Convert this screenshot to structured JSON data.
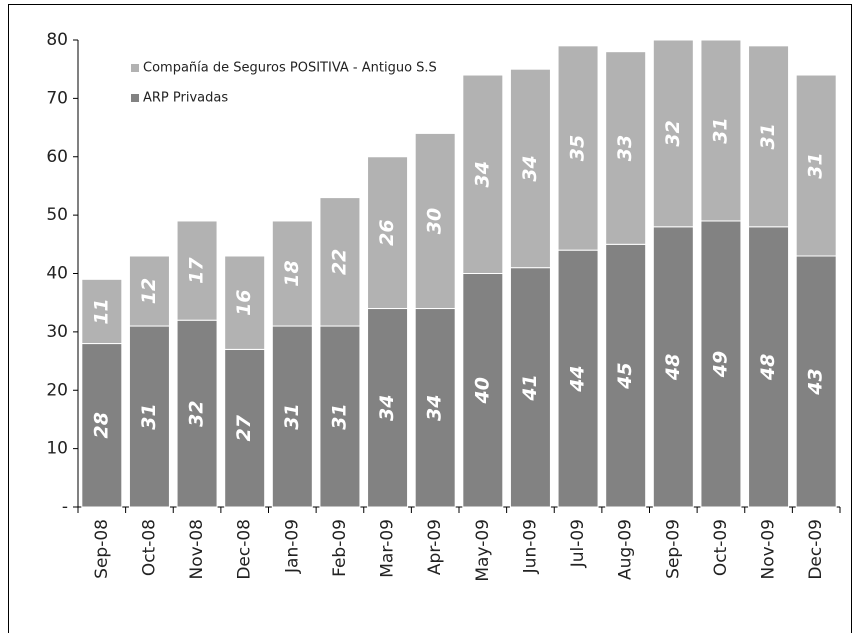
{
  "chart_data": {
    "type": "bar",
    "stacked": true,
    "categories": [
      "Sep-08",
      "Oct-08",
      "Nov-08",
      "Dec-08",
      "Jan-09",
      "Feb-09",
      "Mar-09",
      "Apr-09",
      "May-09",
      "Jun-09",
      "Jul-09",
      "Aug-09",
      "Sep-09",
      "Oct-09",
      "Nov-09",
      "Dec-09"
    ],
    "series": [
      {
        "name": "ARP Privadas",
        "color": "#828282",
        "values": [
          28,
          31,
          32,
          27,
          31,
          31,
          34,
          34,
          40,
          41,
          44,
          45,
          48,
          49,
          48,
          43
        ]
      },
      {
        "name": "Compañía de Seguros POSITIVA - Antiguo S.S",
        "color": "#b2b2b2",
        "values": [
          11,
          12,
          17,
          16,
          18,
          22,
          26,
          30,
          34,
          34,
          35,
          33,
          32,
          31,
          31,
          31
        ]
      }
    ],
    "ylim": [
      0,
      80
    ],
    "yticks": [
      {
        "value": 0,
        "label": "-"
      },
      10,
      20,
      30,
      40,
      50,
      60,
      70,
      80
    ],
    "legend": "top-left"
  }
}
